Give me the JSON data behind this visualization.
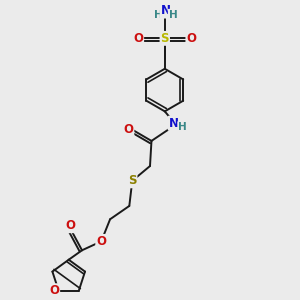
{
  "bg_color": "#ebebeb",
  "bond_color": "#1a1a1a",
  "bond_width": 1.4,
  "atom_colors": {
    "C": "#1a1a1a",
    "N": "#1010cc",
    "O": "#cc1010",
    "S_sulfonamide": "#b8b800",
    "S_thioether": "#8b8000",
    "H": "#3a8888"
  },
  "font_size": 8.5,
  "fig_width": 3.0,
  "fig_height": 3.0,
  "dpi": 100
}
